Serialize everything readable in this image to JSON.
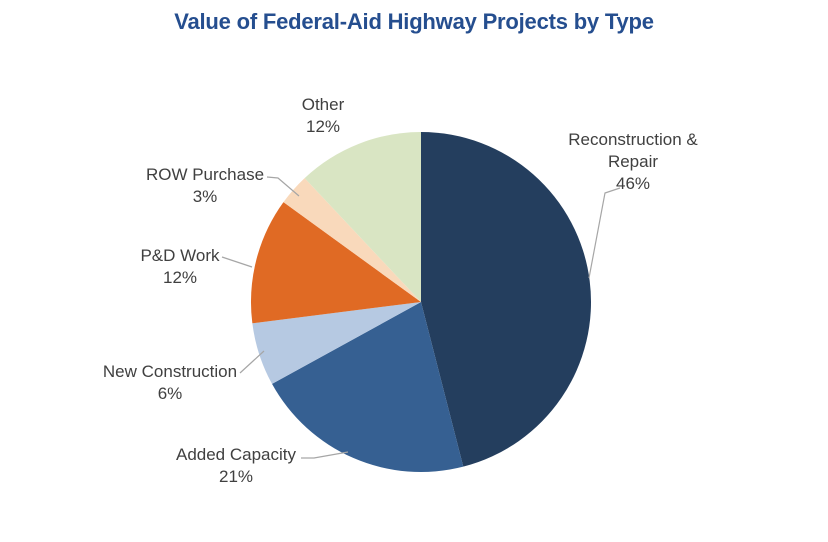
{
  "chart_data": {
    "type": "pie",
    "title": "Value of Federal-Aid Highway Projects by Type",
    "title_color": "#254E8F",
    "unit": "%",
    "start_angle_deg": 0,
    "direction": "clockwise",
    "legend": "none",
    "label_style": {
      "color": "#404040",
      "leader_line_color": "#A6A6A6"
    },
    "background_color": "#FFFFFF",
    "slices": [
      {
        "label": "Reconstruction & Repair",
        "value": 46,
        "pct_label": "46%",
        "color": "#243E5E"
      },
      {
        "label": "Added Capacity",
        "value": 21,
        "pct_label": "21%",
        "color": "#366092"
      },
      {
        "label": "New Construction",
        "value": 6,
        "pct_label": "6%",
        "color": "#B6C9E2"
      },
      {
        "label": "P&D Work",
        "value": 12,
        "pct_label": "12%",
        "color": "#E06A24"
      },
      {
        "label": "ROW Purchase",
        "value": 3,
        "pct_label": "3%",
        "color": "#F9D9BB"
      },
      {
        "label": "Other",
        "value": 12,
        "pct_label": "12%",
        "color": "#D9E5C3"
      }
    ]
  }
}
